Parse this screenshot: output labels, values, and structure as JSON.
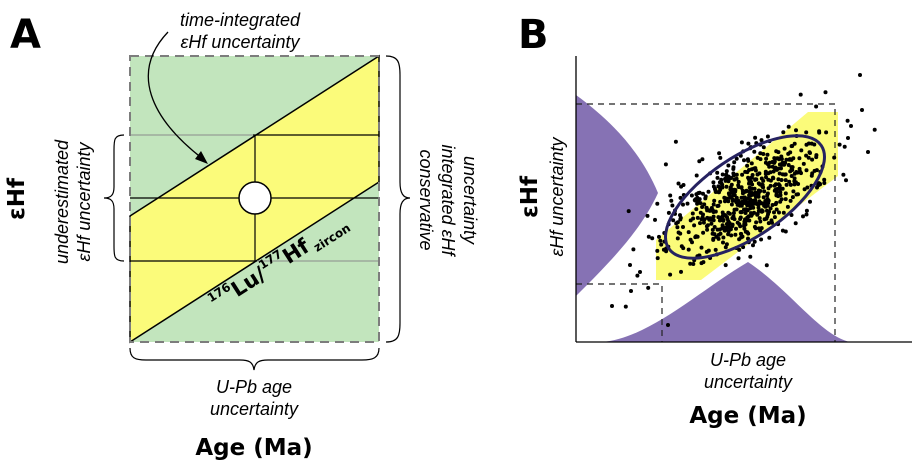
{
  "panel_a": {
    "letter": "A",
    "top_note_line1": "time-integrated",
    "top_note_line2": "εHf uncertainty",
    "left_note_line1": "underestimated",
    "left_note_line2": "εHf uncertainty",
    "right_note_line1": "conservative",
    "right_note_line2": "integrated εHf",
    "right_note_line3": "uncertainty",
    "bottom_note_line1": "U-Pb age",
    "bottom_note_line2": "uncertainty",
    "ylabel": "εHf",
    "xlabel": "Age (Ma)",
    "iso_sup1": "176",
    "iso_el1": "Lu/",
    "iso_sup2": "177",
    "iso_el2": "Hf",
    "iso_sub": "zircon"
  },
  "panel_b": {
    "letter": "B",
    "ylabel": "εHf",
    "y_note": "εHf uncertainty",
    "x_note_line1": "U-Pb age",
    "x_note_line2": "uncertainty",
    "xlabel": "Age (Ma)"
  },
  "colors": {
    "green": "#c2e5bd",
    "yellow": "#fbfb7a",
    "purple": "#8672b4",
    "ellipse": "#262261"
  }
}
